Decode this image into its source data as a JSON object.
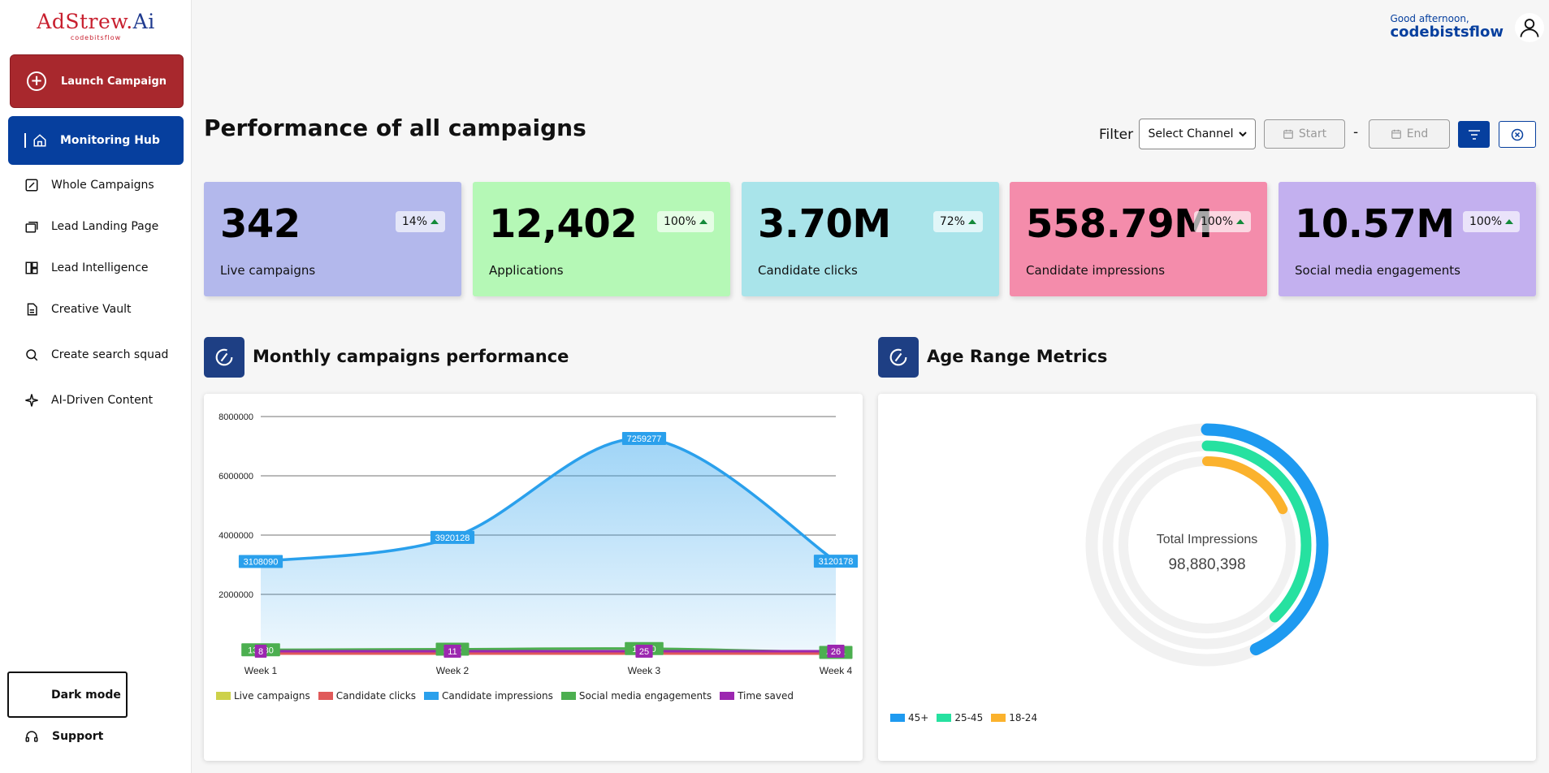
{
  "logo": {
    "main_red": "AdStrew.",
    "main_blue": "Ai",
    "sub": "codebitsflow"
  },
  "sidebar": {
    "launch_label": "Launch Campaign",
    "active_label": "Monitoring Hub",
    "items": [
      {
        "label": "Whole Campaigns",
        "icon": "campaigns-icon"
      },
      {
        "label": "Lead Landing Page",
        "icon": "landing-page-icon"
      },
      {
        "label": "Lead Intelligence",
        "icon": "intelligence-icon"
      },
      {
        "label": "Creative Vault",
        "icon": "vault-icon"
      },
      {
        "label": "Create search squad",
        "icon": "search-icon"
      },
      {
        "label": "AI-Driven Content",
        "icon": "sparkle-icon"
      }
    ],
    "dark_mode_label": "Dark mode",
    "support_label": "Support"
  },
  "header": {
    "greeting": "Good afternoon,",
    "username": "codebistsflow"
  },
  "page_title": "Performance of all campaigns",
  "filter": {
    "label": "Filter",
    "channel_selected": "Select Channel",
    "start_placeholder": "Start",
    "end_placeholder": "End",
    "separator": "-"
  },
  "stats": [
    {
      "value": "342",
      "label": "Live campaigns",
      "change": "14%",
      "color": "#b3b8ec"
    },
    {
      "value": "12,402",
      "label": "Applications",
      "change": "100%",
      "color": "#b5f8b6"
    },
    {
      "value": "3.70M",
      "label": "Candidate clicks",
      "change": "72%",
      "color": "#a9e4ea"
    },
    {
      "value": "558.79M",
      "label": "Candidate impressions",
      "change": "100%",
      "color": "#f48cab"
    },
    {
      "value": "10.57M",
      "label": "Social media engagements",
      "change": "100%",
      "color": "#c3b0ef"
    }
  ],
  "sections": {
    "monthly_title": "Monthly campaigns performance",
    "age_title": "Age Range Metrics"
  },
  "chart_data": [
    {
      "type": "area",
      "title": "Monthly campaigns performance",
      "categories": [
        "Week 1",
        "Week 2",
        "Week 3",
        "Week 4"
      ],
      "ylim": [
        0,
        8000000
      ],
      "yticks": [
        "8000000",
        "6000000",
        "4000000",
        "2000000"
      ],
      "grid": true,
      "legend": "bottom-left",
      "series": [
        {
          "name": "Live campaigns",
          "color": "#cdd14a",
          "values": [
            0,
            0,
            0,
            0
          ]
        },
        {
          "name": "Candidate clicks",
          "color": "#e05a5a",
          "values": [
            0,
            0,
            0,
            0
          ]
        },
        {
          "name": "Candidate impressions",
          "color": "#2aa0ec",
          "values": [
            3108090,
            3920128,
            7259277,
            3120178
          ],
          "labels": [
            "3108090",
            "3920128",
            "7259277",
            "3120178"
          ]
        },
        {
          "name": "Social media engagements",
          "color": "#4caf50",
          "values": [
            130000,
            150000,
            170000,
            40000
          ],
          "labels": [
            "13··80",
            "1···2",
            "1···10",
            "4···4"
          ]
        },
        {
          "name": "Time saved",
          "color": "#9c27b0",
          "values": [
            8,
            11,
            25,
            26
          ],
          "labels": [
            "8",
            "11",
            "25",
            "26"
          ]
        }
      ]
    },
    {
      "type": "pie",
      "title": "Age Range Metrics",
      "center_label": "Total Impressions",
      "center_value": "98,880,398",
      "legend": "bottom-left",
      "series": [
        {
          "name": "45+",
          "color": "#1e9af0",
          "fraction": 0.43
        },
        {
          "name": "25-45",
          "color": "#26e1a0",
          "fraction": 0.38
        },
        {
          "name": "18-24",
          "color": "#fbb22d",
          "fraction": 0.18
        }
      ]
    }
  ]
}
